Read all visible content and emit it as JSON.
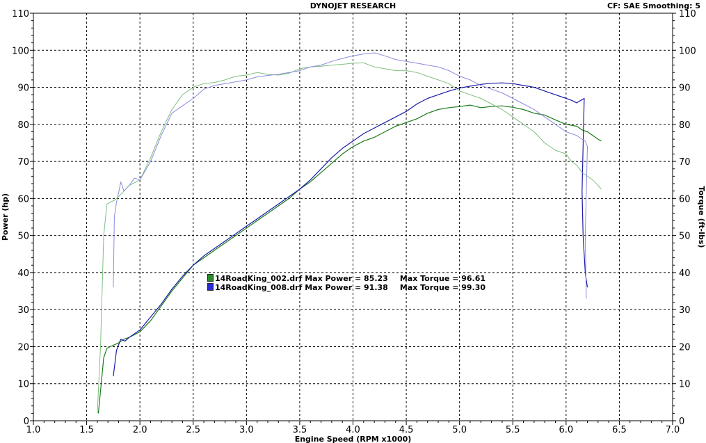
{
  "header": {
    "title": "DYNOJET RESEARCH",
    "correction": "CF: SAE  Smoothing: 5"
  },
  "chart_data": {
    "type": "line",
    "title": "DYNOJET RESEARCH",
    "xlabel": "Engine Speed (RPM x1000)",
    "ylabel": "Power (hp)",
    "y2label": "Torque (ft-lbs)",
    "xlim": [
      1.0,
      7.0
    ],
    "ylim": [
      0,
      110
    ],
    "y2lim": [
      0,
      110
    ],
    "xticks": [
      "1.0",
      "1.5",
      "2.0",
      "2.5",
      "3.0",
      "3.5",
      "4.0",
      "4.5",
      "5.0",
      "5.5",
      "6.0",
      "6.5",
      "7.0"
    ],
    "yticks": [
      "0",
      "10",
      "20",
      "30",
      "40",
      "50",
      "60",
      "70",
      "80",
      "90",
      "100",
      "110"
    ],
    "grid": true,
    "legend_position": "center-left",
    "legend": [
      {
        "file": "14RoadKing_002.drf",
        "power_label": "Max Power = 85.23",
        "torque_label": "Max Torque = 96.61",
        "color": "#1a7a1a"
      },
      {
        "file": "14RoadKing_008.drf",
        "power_label": "Max Power = 91.38",
        "torque_label": "Max Torque = 99.30",
        "color": "#1a1aa8"
      }
    ],
    "series": [
      {
        "color": "#1a7a1a",
        "width": 1.2,
        "x": [
          1.61,
          1.63,
          1.66,
          1.69,
          1.72,
          1.76,
          1.8,
          1.85,
          1.9,
          2.0,
          2.1,
          2.2,
          2.3,
          2.4,
          2.5,
          2.6,
          2.7,
          2.8,
          2.9,
          3.0,
          3.1,
          3.2,
          3.3,
          3.4,
          3.5,
          3.6,
          3.7,
          3.8,
          3.9,
          4.0,
          4.1,
          4.2,
          4.3,
          4.4,
          4.5,
          4.6,
          4.7,
          4.8,
          4.9,
          5.0,
          5.1,
          5.2,
          5.3,
          5.4,
          5.5,
          5.6,
          5.7,
          5.8,
          5.9,
          6.0,
          6.1,
          6.15,
          6.2,
          6.25,
          6.3,
          6.33
        ],
        "y": [
          2,
          8,
          17,
          19.5,
          20,
          20.5,
          21,
          22,
          22.5,
          24,
          27,
          31,
          35,
          38.5,
          42,
          44,
          46,
          48,
          50,
          52,
          54,
          56,
          58,
          60,
          62.5,
          64.5,
          67,
          69.5,
          72,
          74,
          75.5,
          76.5,
          78,
          79.5,
          80.5,
          81.5,
          83,
          84,
          84.5,
          84.8,
          85.2,
          84.5,
          84.8,
          85,
          84.6,
          84,
          83,
          82.5,
          81.2,
          80,
          79.5,
          78.5,
          78,
          77,
          76,
          75.5
        ]
      },
      {
        "color": "#1a1aa8",
        "width": 1.2,
        "x": [
          1.75,
          1.78,
          1.82,
          1.86,
          1.9,
          2.0,
          2.1,
          2.2,
          2.3,
          2.4,
          2.5,
          2.6,
          2.7,
          2.8,
          2.9,
          3.0,
          3.1,
          3.2,
          3.3,
          3.4,
          3.5,
          3.6,
          3.7,
          3.8,
          3.9,
          4.0,
          4.1,
          4.2,
          4.3,
          4.4,
          4.5,
          4.6,
          4.7,
          4.8,
          4.9,
          5.0,
          5.1,
          5.2,
          5.3,
          5.4,
          5.5,
          5.6,
          5.7,
          5.8,
          5.9,
          6.0,
          6.05,
          6.1,
          6.14,
          6.17,
          6.15,
          6.16,
          6.18,
          6.2
        ],
        "y": [
          12,
          19,
          22,
          21.5,
          22.5,
          24.5,
          28,
          31.5,
          35.5,
          39,
          42,
          44.5,
          46.5,
          48.5,
          50.5,
          52.5,
          54.5,
          56.5,
          58.5,
          60.5,
          62.5,
          65,
          68,
          71,
          73.5,
          75.5,
          77.5,
          79,
          80.5,
          82,
          83.5,
          85.5,
          87,
          88,
          89,
          89.8,
          90.3,
          90.8,
          91.1,
          91.2,
          91,
          90.5,
          90,
          89,
          88,
          87,
          86.5,
          85.8,
          86.5,
          87,
          62,
          50,
          40,
          36
        ]
      },
      {
        "color": "#7fbf7f",
        "width": 1,
        "x": [
          1.6,
          1.63,
          1.66,
          1.69,
          1.72,
          1.76,
          1.8,
          1.85,
          1.9,
          2.0,
          2.1,
          2.2,
          2.3,
          2.4,
          2.5,
          2.6,
          2.7,
          2.8,
          2.9,
          3.0,
          3.1,
          3.2,
          3.3,
          3.4,
          3.5,
          3.6,
          3.7,
          3.8,
          3.9,
          4.0,
          4.1,
          4.2,
          4.3,
          4.4,
          4.5,
          4.6,
          4.7,
          4.8,
          4.9,
          5.0,
          5.1,
          5.2,
          5.3,
          5.4,
          5.5,
          5.6,
          5.7,
          5.8,
          5.9,
          6.0,
          6.05,
          6.1,
          6.15,
          6.2,
          6.25,
          6.3,
          6.33
        ],
        "y": [
          2,
          20,
          50,
          58.5,
          59,
          59.5,
          60.5,
          62,
          63.5,
          65,
          71,
          78,
          84,
          88,
          90,
          91,
          91.3,
          92,
          93,
          93.3,
          94,
          93.5,
          93.3,
          93.8,
          95,
          95.5,
          95.7,
          96,
          96.2,
          96.5,
          96.6,
          95.5,
          95,
          94.5,
          94.5,
          94,
          93,
          92,
          91,
          89,
          88,
          87,
          85.5,
          84,
          82,
          80,
          78,
          75,
          73,
          72,
          70,
          69,
          67,
          66,
          65,
          63.5,
          62.5
        ]
      },
      {
        "color": "#8a8ae0",
        "width": 1,
        "x": [
          1.75,
          1.76,
          1.78,
          1.8,
          1.82,
          1.85,
          1.9,
          1.95,
          2.0,
          2.1,
          2.2,
          2.3,
          2.4,
          2.5,
          2.6,
          2.7,
          2.8,
          2.9,
          3.0,
          3.1,
          3.2,
          3.3,
          3.4,
          3.5,
          3.6,
          3.7,
          3.8,
          3.9,
          4.0,
          4.1,
          4.2,
          4.3,
          4.4,
          4.5,
          4.6,
          4.7,
          4.8,
          4.9,
          5.0,
          5.1,
          5.2,
          5.3,
          5.4,
          5.5,
          5.6,
          5.7,
          5.8,
          5.9,
          6.0,
          6.05,
          6.1,
          6.15,
          6.18,
          6.2,
          6.18,
          6.19
        ],
        "y": [
          36,
          55,
          59,
          61.5,
          64.5,
          62,
          63.5,
          65.5,
          65,
          70,
          77,
          83,
          85,
          87,
          89.5,
          90.5,
          91,
          91.5,
          92,
          92.8,
          93.2,
          93.5,
          94,
          94.5,
          95.5,
          96,
          97,
          97.8,
          98.5,
          99,
          99.3,
          98.5,
          97.5,
          97,
          96.5,
          96,
          95.5,
          94.5,
          93,
          92,
          90.5,
          89.5,
          88.5,
          87,
          85.5,
          84,
          82,
          80,
          78,
          77.5,
          77,
          76,
          75.5,
          74,
          50,
          33
        ]
      }
    ]
  }
}
